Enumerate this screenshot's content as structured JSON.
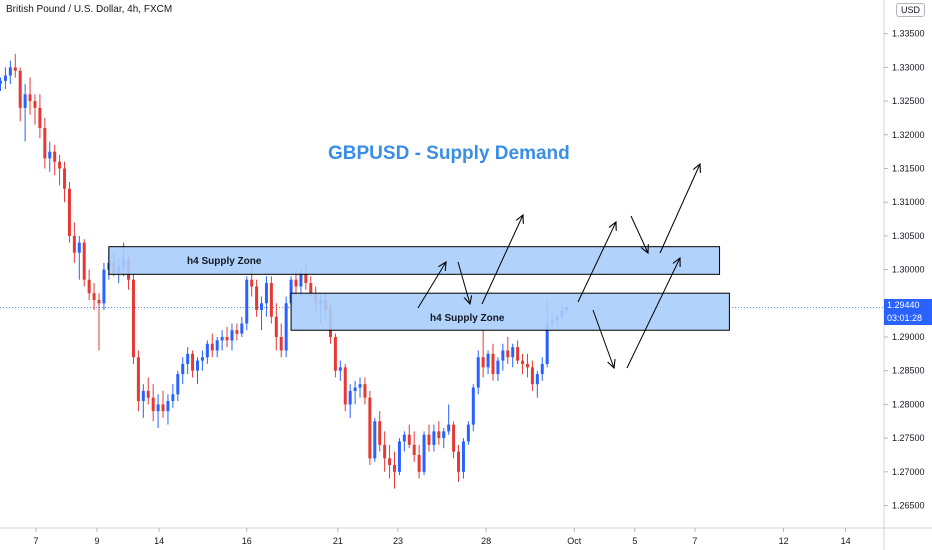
{
  "header": {
    "symbol": "British Pound / U.S. Dollar, 4h, FXCM",
    "currency": "USD"
  },
  "annotation": {
    "title": "GBPUSD - Supply Demand",
    "upper_zone_label": "h4 Supply Zone",
    "lower_zone_label": "h4 Supply Zone"
  },
  "price_scale": {
    "last_price": "1.29440",
    "countdown": "03:01:28"
  },
  "colors": {
    "bull": "#2962ff",
    "bear": "#e53935",
    "zone_fill": "#a9cdfa",
    "zone_border": "#000000",
    "title": "#3a8ee6",
    "last_price_line": "#2962ff"
  },
  "chart_data": {
    "type": "candlestick",
    "title": "GBPUSD - Supply Demand",
    "symbol": "British Pound / U.S. Dollar, 4h, FXCM",
    "ylim": [
      1.262,
      1.338
    ],
    "y_ticks": [
      "1.33500",
      "1.33000",
      "1.32500",
      "1.32000",
      "1.31500",
      "1.31000",
      "1.30500",
      "1.30000",
      "1.29500",
      "1.29000",
      "1.28500",
      "1.28000",
      "1.27500",
      "1.27000",
      "1.26500"
    ],
    "x_ticks": [
      "7",
      "9",
      "14",
      "16",
      "21",
      "23",
      "28",
      "Oct",
      "5",
      "7",
      "12",
      "14"
    ],
    "last_price": 1.2944,
    "zones": [
      {
        "label": "h4 Supply Zone",
        "from_index": 22,
        "to_index": 146,
        "y_low": 1.2993,
        "y_high": 1.3034
      },
      {
        "label": "h4 Supply Zone",
        "from_index": 59,
        "to_index": 148,
        "y_low": 1.291,
        "y_high": 1.2965
      }
    ],
    "candles": [
      [
        1.3276,
        1.3285,
        1.3265,
        1.328
      ],
      [
        1.328,
        1.33,
        1.3268,
        1.3288
      ],
      [
        1.3288,
        1.331,
        1.3275,
        1.33
      ],
      [
        1.33,
        1.332,
        1.3285,
        1.3295
      ],
      [
        1.3295,
        1.33,
        1.322,
        1.324
      ],
      [
        1.324,
        1.3275,
        1.319,
        1.326
      ],
      [
        1.326,
        1.3285,
        1.323,
        1.325
      ],
      [
        1.325,
        1.326,
        1.3215,
        1.324
      ],
      [
        1.324,
        1.326,
        1.3195,
        1.321
      ],
      [
        1.321,
        1.3225,
        1.315,
        1.3165
      ],
      [
        1.3165,
        1.319,
        1.3145,
        1.3175
      ],
      [
        1.3175,
        1.3185,
        1.314,
        1.316
      ],
      [
        1.316,
        1.317,
        1.3125,
        1.315
      ],
      [
        1.315,
        1.316,
        1.31,
        1.312
      ],
      [
        1.312,
        1.313,
        1.304,
        1.305
      ],
      [
        1.305,
        1.307,
        1.301,
        1.3025
      ],
      [
        1.3025,
        1.305,
        1.2985,
        1.304
      ],
      [
        1.304,
        1.3045,
        1.2975,
        1.2985
      ],
      [
        1.2985,
        1.3,
        1.2955,
        1.2965
      ],
      [
        1.2965,
        1.298,
        1.294,
        1.2955
      ],
      [
        1.2955,
        1.2965,
        1.288,
        1.295
      ],
      [
        1.295,
        1.301,
        1.294,
        1.3
      ],
      [
        1.3,
        1.303,
        1.2985,
        1.301
      ],
      [
        1.301,
        1.3025,
        1.299,
        1.2995
      ],
      [
        1.2995,
        1.3015,
        1.298,
        1.3005
      ],
      [
        1.3005,
        1.304,
        1.299,
        1.3015
      ],
      [
        1.3015,
        1.302,
        1.297,
        1.2985
      ],
      [
        1.2985,
        1.2995,
        1.286,
        1.287
      ],
      [
        1.287,
        1.288,
        1.279,
        1.2805
      ],
      [
        1.2805,
        1.283,
        1.278,
        1.282
      ],
      [
        1.282,
        1.284,
        1.28,
        1.281
      ],
      [
        1.281,
        1.283,
        1.2775,
        1.279
      ],
      [
        1.279,
        1.2815,
        1.2765,
        1.28
      ],
      [
        1.28,
        1.282,
        1.278,
        1.279
      ],
      [
        1.279,
        1.2815,
        1.277,
        1.2805
      ],
      [
        1.2805,
        1.283,
        1.2795,
        1.2815
      ],
      [
        1.2815,
        1.285,
        1.2805,
        1.2845
      ],
      [
        1.2845,
        1.287,
        1.283,
        1.286
      ],
      [
        1.286,
        1.2885,
        1.2845,
        1.2875
      ],
      [
        1.2875,
        1.288,
        1.284,
        1.285
      ],
      [
        1.285,
        1.287,
        1.283,
        1.2865
      ],
      [
        1.2865,
        1.288,
        1.285,
        1.287
      ],
      [
        1.287,
        1.2895,
        1.286,
        1.289
      ],
      [
        1.289,
        1.2905,
        1.287,
        1.288
      ],
      [
        1.288,
        1.29,
        1.287,
        1.2895
      ],
      [
        1.2895,
        1.291,
        1.288,
        1.29
      ],
      [
        1.29,
        1.2915,
        1.2885,
        1.2895
      ],
      [
        1.2895,
        1.292,
        1.288,
        1.291
      ],
      [
        1.291,
        1.292,
        1.2895,
        1.2905
      ],
      [
        1.2905,
        1.293,
        1.29,
        1.292
      ],
      [
        1.292,
        1.299,
        1.291,
        1.2985
      ],
      [
        1.2985,
        1.301,
        1.296,
        1.2975
      ],
      [
        1.2975,
        1.2985,
        1.293,
        1.294
      ],
      [
        1.294,
        1.296,
        1.291,
        1.295
      ],
      [
        1.295,
        1.299,
        1.293,
        1.298
      ],
      [
        1.298,
        1.299,
        1.292,
        1.293
      ],
      [
        1.293,
        1.295,
        1.288,
        1.29
      ],
      [
        1.29,
        1.292,
        1.287,
        1.288
      ],
      [
        1.288,
        1.296,
        1.287,
        1.295
      ],
      [
        1.295,
        1.299,
        1.294,
        1.2985
      ],
      [
        1.2985,
        1.3,
        1.296,
        1.2975
      ],
      [
        1.2975,
        1.3,
        1.296,
        1.2995
      ],
      [
        1.2995,
        1.301,
        1.297,
        1.298
      ],
      [
        1.298,
        1.299,
        1.296,
        1.2965
      ],
      [
        1.2965,
        1.2975,
        1.2935,
        1.295
      ],
      [
        1.295,
        1.2965,
        1.292,
        1.2955
      ],
      [
        1.2955,
        1.2965,
        1.2925,
        1.294
      ],
      [
        1.294,
        1.295,
        1.289,
        1.29
      ],
      [
        1.29,
        1.2905,
        1.284,
        1.285
      ],
      [
        1.285,
        1.2865,
        1.2835,
        1.2855
      ],
      [
        1.2855,
        1.286,
        1.279,
        1.28
      ],
      [
        1.28,
        1.283,
        1.278,
        1.282
      ],
      [
        1.282,
        1.2835,
        1.28,
        1.2825
      ],
      [
        1.2825,
        1.284,
        1.281,
        1.283
      ],
      [
        1.283,
        1.284,
        1.28,
        1.281
      ],
      [
        1.281,
        1.282,
        1.271,
        1.272
      ],
      [
        1.272,
        1.278,
        1.2715,
        1.2775
      ],
      [
        1.2775,
        1.279,
        1.273,
        1.274
      ],
      [
        1.274,
        1.276,
        1.27,
        1.272
      ],
      [
        1.272,
        1.274,
        1.269,
        1.271
      ],
      [
        1.271,
        1.273,
        1.2675,
        1.27
      ],
      [
        1.27,
        1.275,
        1.2695,
        1.2745
      ],
      [
        1.2745,
        1.276,
        1.273,
        1.2755
      ],
      [
        1.2755,
        1.277,
        1.2735,
        1.274
      ],
      [
        1.274,
        1.276,
        1.2715,
        1.2725
      ],
      [
        1.2725,
        1.274,
        1.269,
        1.27
      ],
      [
        1.27,
        1.276,
        1.2695,
        1.2755
      ],
      [
        1.2755,
        1.277,
        1.273,
        1.274
      ],
      [
        1.274,
        1.277,
        1.273,
        1.276
      ],
      [
        1.276,
        1.2775,
        1.274,
        1.275
      ],
      [
        1.275,
        1.2765,
        1.2735,
        1.276
      ],
      [
        1.276,
        1.28,
        1.2755,
        1.277
      ],
      [
        1.277,
        1.2775,
        1.272,
        1.273
      ],
      [
        1.273,
        1.274,
        1.2685,
        1.27
      ],
      [
        1.27,
        1.275,
        1.269,
        1.2745
      ],
      [
        1.2745,
        1.2775,
        1.274,
        1.277
      ],
      [
        1.277,
        1.283,
        1.276,
        1.2825
      ],
      [
        1.2825,
        1.288,
        1.2815,
        1.287
      ],
      [
        1.287,
        1.291,
        1.284,
        1.2855
      ],
      [
        1.2855,
        1.288,
        1.2845,
        1.2875
      ],
      [
        1.2875,
        1.289,
        1.2835,
        1.2845
      ],
      [
        1.2845,
        1.287,
        1.2835,
        1.2865
      ],
      [
        1.2865,
        1.289,
        1.285,
        1.288
      ],
      [
        1.288,
        1.29,
        1.286,
        1.287
      ],
      [
        1.287,
        1.289,
        1.2855,
        1.2885
      ],
      [
        1.2885,
        1.2895,
        1.286,
        1.2865
      ],
      [
        1.2865,
        1.2875,
        1.2845,
        1.286
      ],
      [
        1.286,
        1.2875,
        1.284,
        1.2855
      ],
      [
        1.2855,
        1.2865,
        1.282,
        1.283
      ],
      [
        1.283,
        1.285,
        1.281,
        1.2845
      ],
      [
        1.2845,
        1.287,
        1.2835,
        1.286
      ],
      [
        1.286,
        1.2955,
        1.2855,
        1.292
      ],
      [
        1.292,
        1.2935,
        1.291,
        1.2925
      ],
      [
        1.2925,
        1.2935,
        1.2915,
        1.293
      ],
      [
        1.293,
        1.2945,
        1.2925,
        1.294
      ],
      [
        1.294,
        1.2945,
        1.2935,
        1.2944
      ]
    ]
  }
}
